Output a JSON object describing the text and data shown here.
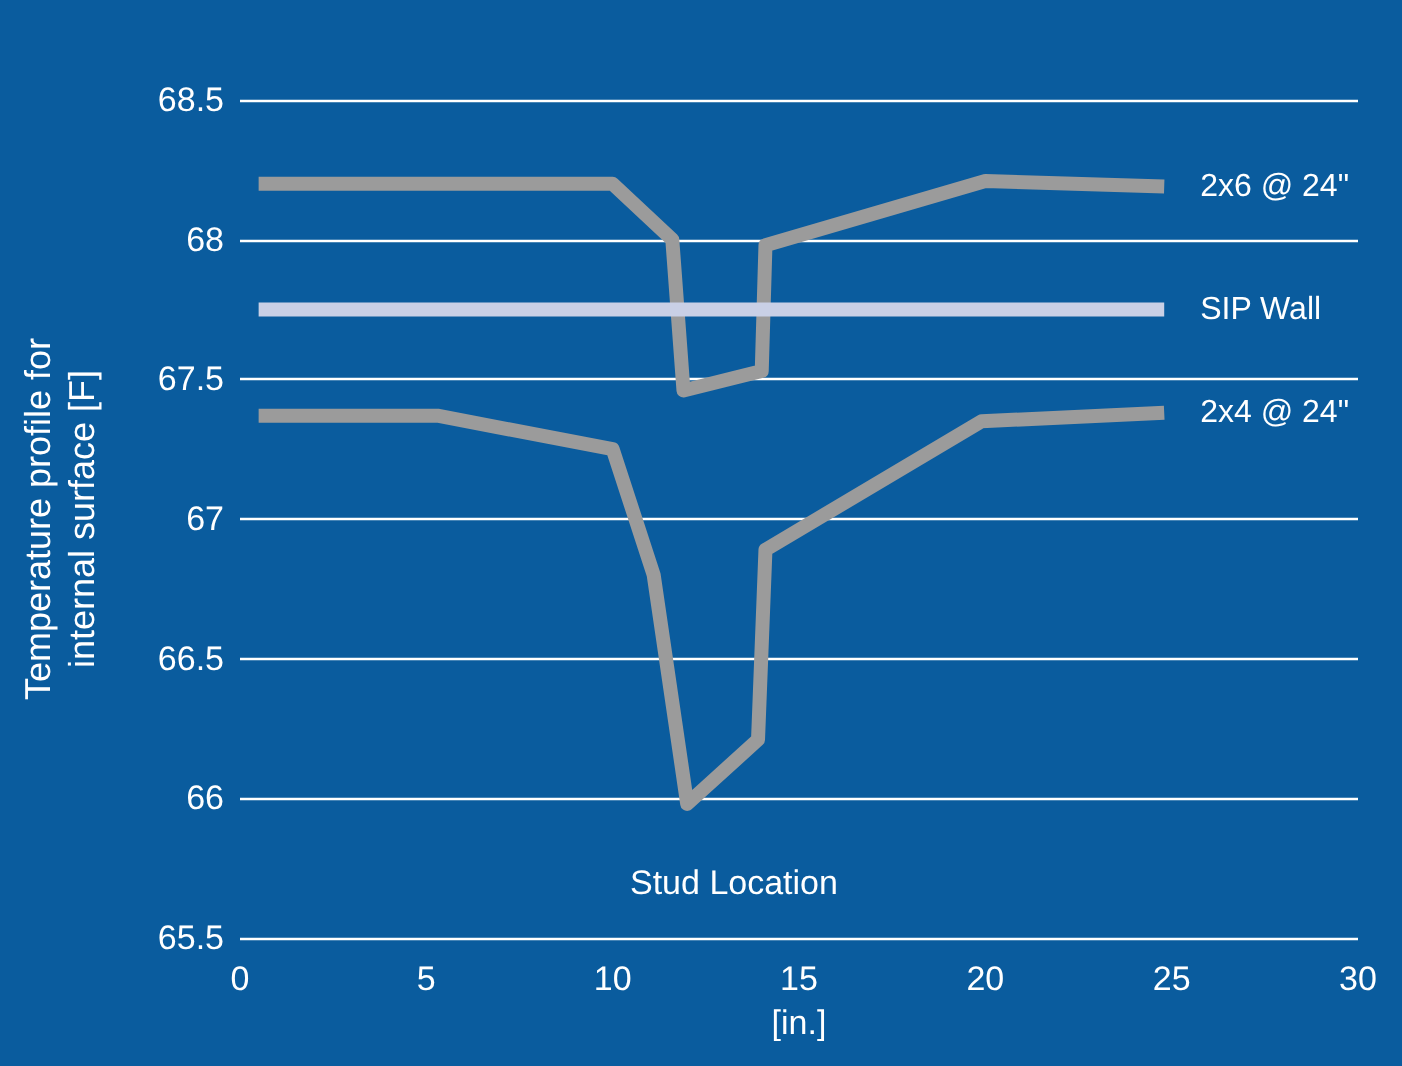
{
  "chart_data": {
    "type": "line",
    "xlabel": "[in.]",
    "ylabel": "Temperature profile for\ninternal surface [F]",
    "xlim": [
      0,
      30
    ],
    "xticks": [
      0,
      5,
      10,
      15,
      20,
      25,
      30
    ],
    "ylim": [
      65.5,
      68.5
    ],
    "yticks": [
      65.5,
      66,
      66.5,
      67,
      67.5,
      68,
      68.5
    ],
    "grid": "y",
    "legend": false,
    "marker": "none",
    "line_style": "solid",
    "annotations": [
      "Stud Location"
    ],
    "series": [
      {
        "name": "2x6 @ 24\"",
        "color": "#9b9b9b",
        "x": [
          0.5,
          10,
          11.6,
          11.9,
          14,
          14.1,
          20,
          24.8
        ],
        "values": [
          68.2,
          68.2,
          68,
          67.46,
          67.53,
          67.98,
          68.21,
          68.19
        ]
      },
      {
        "name": "SIP Wall",
        "color": "#c9d0e6",
        "x": [
          0.5,
          24.8
        ],
        "values": [
          67.75,
          67.75
        ]
      },
      {
        "name": "2x4 @ 24\"",
        "color": "#9b9b9b",
        "x": [
          0.5,
          5.3,
          10,
          11.1,
          12,
          13.9,
          14.1,
          19.9,
          24.8
        ],
        "values": [
          67.37,
          67.37,
          67.25,
          66.8,
          65.98,
          66.21,
          66.89,
          67.35,
          67.38
        ]
      }
    ]
  }
}
